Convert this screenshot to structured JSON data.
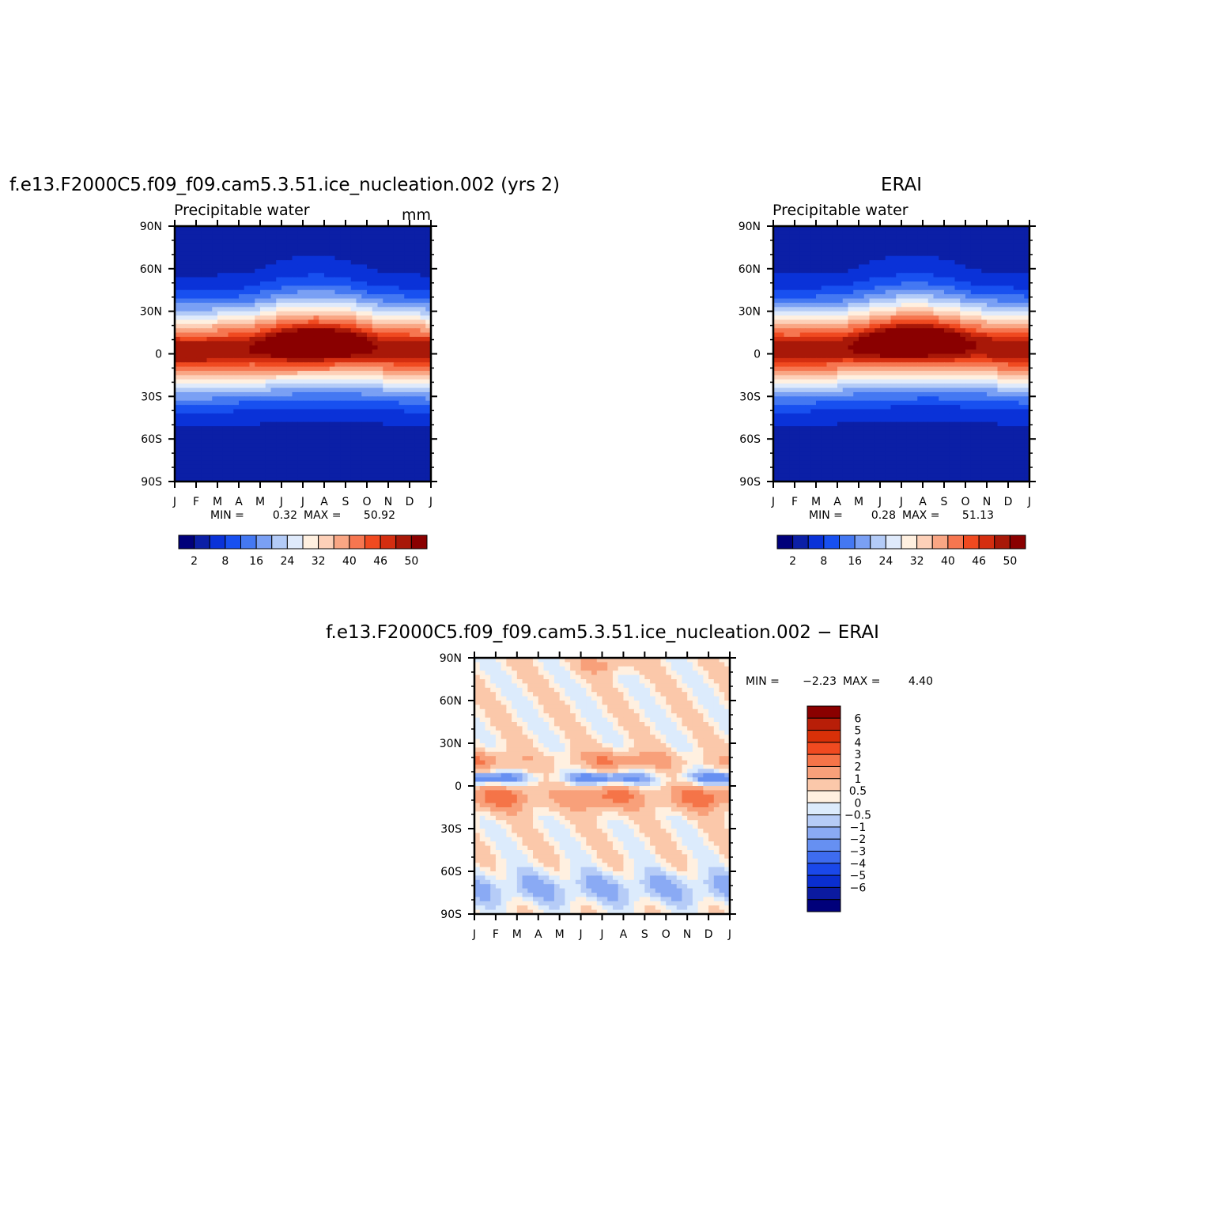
{
  "chart_data": [
    {
      "type": "heatmap",
      "title": "f.e13.F2000C5.f09_f09.cam5.3.51.ice_nucleation.002 (yrs 2)",
      "subtitle": "Precipitable water",
      "units": "mm",
      "x_tick_labels": [
        "J",
        "F",
        "M",
        "A",
        "M",
        "J",
        "J",
        "A",
        "S",
        "O",
        "N",
        "D",
        "J"
      ],
      "y_tick_labels": [
        "90N",
        "60N",
        "30N",
        "0",
        "30S",
        "60S",
        "90S"
      ],
      "y_values": [
        90,
        60,
        30,
        0,
        -30,
        -60,
        -90
      ],
      "x_range": [
        0,
        12
      ],
      "y_range": [
        -90,
        90
      ],
      "min_label": "MIN =",
      "min_value": "0.32",
      "max_label": "MAX =",
      "max_value": "50.92",
      "colorbar_orientation": "horizontal",
      "colorbar_colors": [
        "#00007a",
        "#0b1fa6",
        "#0a32d8",
        "#1850f0",
        "#4478f2",
        "#7aa0f4",
        "#b3cbf7",
        "#dfeafb",
        "#fff0e0",
        "#fdd0b8",
        "#f9a684",
        "#f67650",
        "#f04a20",
        "#d42e10",
        "#a81808",
        "#8a0000"
      ],
      "colorbar_labels": [
        "2",
        "8",
        "16",
        "24",
        "32",
        "40",
        "46",
        "50"
      ]
    },
    {
      "type": "heatmap",
      "title": "ERAI",
      "subtitle": "Precipitable water",
      "x_tick_labels": [
        "J",
        "F",
        "M",
        "A",
        "M",
        "J",
        "J",
        "A",
        "S",
        "O",
        "N",
        "D",
        "J"
      ],
      "y_tick_labels": [
        "90N",
        "60N",
        "30N",
        "0",
        "30S",
        "60S",
        "90S"
      ],
      "y_values": [
        90,
        60,
        30,
        0,
        -30,
        -60,
        -90
      ],
      "x_range": [
        0,
        12
      ],
      "y_range": [
        -90,
        90
      ],
      "min_label": "MIN =",
      "min_value": "0.28",
      "max_label": "MAX =",
      "max_value": "51.13",
      "colorbar_orientation": "horizontal",
      "colorbar_colors": [
        "#00007a",
        "#0b1fa6",
        "#0a32d8",
        "#1850f0",
        "#4478f2",
        "#7aa0f4",
        "#b3cbf7",
        "#dfeafb",
        "#fff0e0",
        "#fdd0b8",
        "#f9a684",
        "#f67650",
        "#f04a20",
        "#d42e10",
        "#a81808",
        "#8a0000"
      ],
      "colorbar_labels": [
        "2",
        "8",
        "16",
        "24",
        "32",
        "40",
        "46",
        "50"
      ]
    },
    {
      "type": "heatmap",
      "title": "f.e13.F2000C5.f09_f09.cam5.3.51.ice_nucleation.002 − ERAI",
      "x_tick_labels": [
        "J",
        "F",
        "M",
        "A",
        "M",
        "J",
        "J",
        "A",
        "S",
        "O",
        "N",
        "D",
        "J"
      ],
      "y_tick_labels": [
        "90N",
        "60N",
        "30N",
        "0",
        "30S",
        "60S",
        "90S"
      ],
      "y_values": [
        90,
        60,
        30,
        0,
        -30,
        -60,
        -90
      ],
      "x_range": [
        0,
        12
      ],
      "y_range": [
        -90,
        90
      ],
      "min_label": "MIN =",
      "min_value": "−2.23",
      "max_label": "MAX =",
      "max_value": "4.40",
      "colorbar_orientation": "vertical",
      "colorbar_colors": [
        "#8a0000",
        "#b81e08",
        "#d83008",
        "#f04a20",
        "#f57448",
        "#f8a07a",
        "#fbc8aa",
        "#fff0e0",
        "#dcebfc",
        "#b6ccf7",
        "#8aaaf4",
        "#6690f2",
        "#3e6cef",
        "#1a48ea",
        "#0a2ed0",
        "#0b1aa0",
        "#00007a"
      ],
      "colorbar_labels": [
        "6",
        "5",
        "4",
        "3",
        "2",
        "1",
        "0.5",
        "0",
        "−0.5",
        "−1",
        "−2",
        "−3",
        "−4",
        "−5",
        "−6"
      ]
    }
  ]
}
